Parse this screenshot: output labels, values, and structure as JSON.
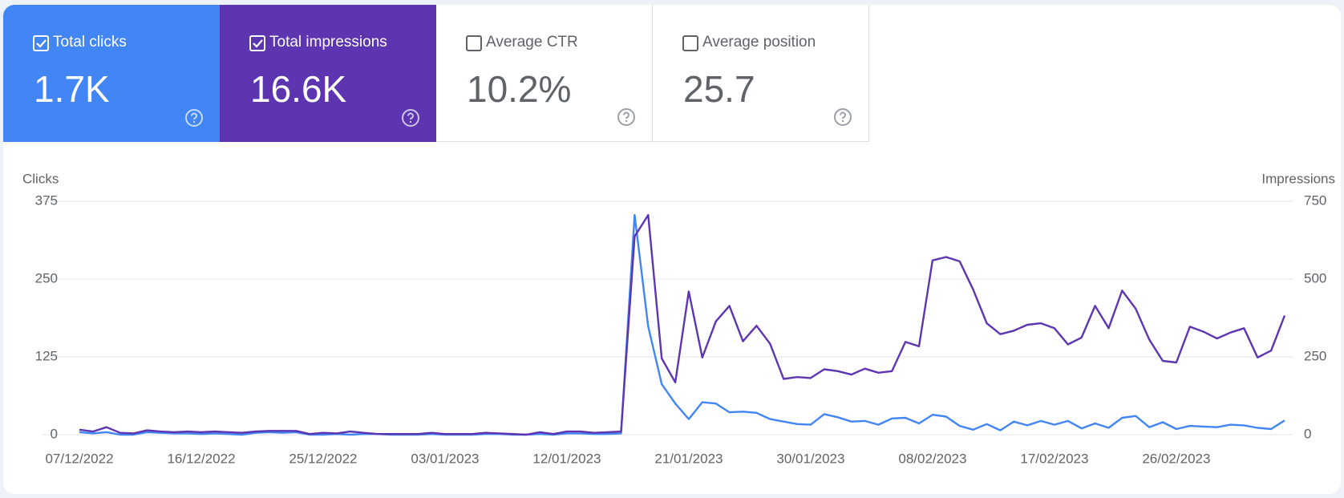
{
  "cards": [
    {
      "label": "Total clicks",
      "value": "1.7K",
      "checked": true,
      "color": "#4285f4"
    },
    {
      "label": "Total impressions",
      "value": "16.6K",
      "checked": true,
      "color": "#5e35b1"
    },
    {
      "label": "Average CTR",
      "value": "10.2%",
      "checked": false,
      "color": "#ffffff"
    },
    {
      "label": "Average position",
      "value": "25.7",
      "checked": false,
      "color": "#ffffff"
    }
  ],
  "chart_data": {
    "type": "line",
    "y_label": "Clicks",
    "y2_label": "Impressions",
    "x": [
      "07/12/2022",
      "08/12/2022",
      "09/12/2022",
      "10/12/2022",
      "11/12/2022",
      "12/12/2022",
      "13/12/2022",
      "14/12/2022",
      "15/12/2022",
      "16/12/2022",
      "17/12/2022",
      "18/12/2022",
      "19/12/2022",
      "20/12/2022",
      "21/12/2022",
      "22/12/2022",
      "23/12/2022",
      "24/12/2022",
      "25/12/2022",
      "26/12/2022",
      "27/12/2022",
      "28/12/2022",
      "29/12/2022",
      "30/12/2022",
      "31/12/2022",
      "01/01/2023",
      "02/01/2023",
      "03/01/2023",
      "04/01/2023",
      "05/01/2023",
      "06/01/2023",
      "07/01/2023",
      "08/01/2023",
      "09/01/2023",
      "10/01/2023",
      "11/01/2023",
      "12/01/2023",
      "13/01/2023",
      "14/01/2023",
      "15/01/2023",
      "16/01/2023",
      "17/01/2023",
      "18/01/2023",
      "19/01/2023",
      "20/01/2023",
      "21/01/2023",
      "22/01/2023",
      "23/01/2023",
      "24/01/2023",
      "25/01/2023",
      "26/01/2023",
      "27/01/2023",
      "28/01/2023",
      "29/01/2023",
      "30/01/2023",
      "31/01/2023",
      "01/02/2023",
      "02/02/2023",
      "03/02/2023",
      "04/02/2023",
      "05/02/2023",
      "06/02/2023",
      "07/02/2023",
      "08/02/2023",
      "09/02/2023",
      "10/02/2023",
      "11/02/2023",
      "12/02/2023",
      "13/02/2023",
      "14/02/2023",
      "15/02/2023",
      "16/02/2023",
      "17/02/2023",
      "18/02/2023",
      "19/02/2023",
      "20/02/2023",
      "21/02/2023",
      "22/02/2023",
      "23/02/2023",
      "24/02/2023",
      "25/02/2023",
      "26/02/2023",
      "27/02/2023",
      "28/02/2023",
      "01/03/2023",
      "02/03/2023",
      "03/03/2023",
      "04/03/2023",
      "05/03/2023",
      "06/03/2023"
    ],
    "xticks": [
      "07/12/2022",
      "16/12/2022",
      "25/12/2022",
      "03/01/2023",
      "12/01/2023",
      "21/01/2023",
      "30/01/2023",
      "08/02/2023",
      "17/02/2023",
      "26/02/2023"
    ],
    "ylim": [
      0,
      375
    ],
    "yticks": [
      0,
      125,
      250,
      375
    ],
    "y2lim": [
      0,
      750
    ],
    "y2ticks": [
      0,
      250,
      500,
      750
    ],
    "grid": true,
    "series": [
      {
        "name": "Clicks",
        "color": "#4285f4",
        "values": [
          4,
          2,
          4,
          0,
          0,
          4,
          3,
          2,
          2,
          1,
          2,
          1,
          0,
          3,
          4,
          3,
          4,
          0,
          0,
          1,
          0,
          1,
          1,
          0,
          0,
          0,
          1,
          0,
          0,
          0,
          1,
          1,
          0,
          0,
          1,
          0,
          2,
          2,
          1,
          1,
          2,
          353,
          174,
          81,
          50,
          25,
          52,
          50,
          36,
          37,
          35,
          25,
          21,
          17,
          16,
          33,
          28,
          21,
          22,
          16,
          26,
          27,
          18,
          32,
          29,
          14,
          8,
          17,
          7,
          21,
          15,
          22,
          16,
          22,
          10,
          18,
          11,
          27,
          30,
          12,
          20,
          9,
          14,
          13,
          12,
          16,
          15,
          11,
          9,
          23
        ]
      },
      {
        "name": "Impressions",
        "color": "#5e35b1",
        "axis": "y2",
        "values": [
          16,
          10,
          24,
          6,
          4,
          14,
          10,
          8,
          10,
          8,
          10,
          8,
          6,
          10,
          12,
          12,
          12,
          2,
          6,
          4,
          10,
          6,
          2,
          2,
          2,
          2,
          6,
          2,
          2,
          2,
          6,
          4,
          2,
          0,
          8,
          2,
          10,
          10,
          6,
          8,
          10,
          637,
          706,
          245,
          168,
          460,
          248,
          364,
          414,
          300,
          350,
          292,
          179,
          185,
          182,
          210,
          204,
          193,
          212,
          199,
          204,
          298,
          284,
          560,
          571,
          557,
          466,
          358,
          323,
          334,
          353,
          358,
          342,
          290,
          312,
          414,
          342,
          463,
          405,
          306,
          237,
          232,
          347,
          331,
          309,
          328,
          342,
          248,
          270,
          383
        ]
      }
    ]
  }
}
